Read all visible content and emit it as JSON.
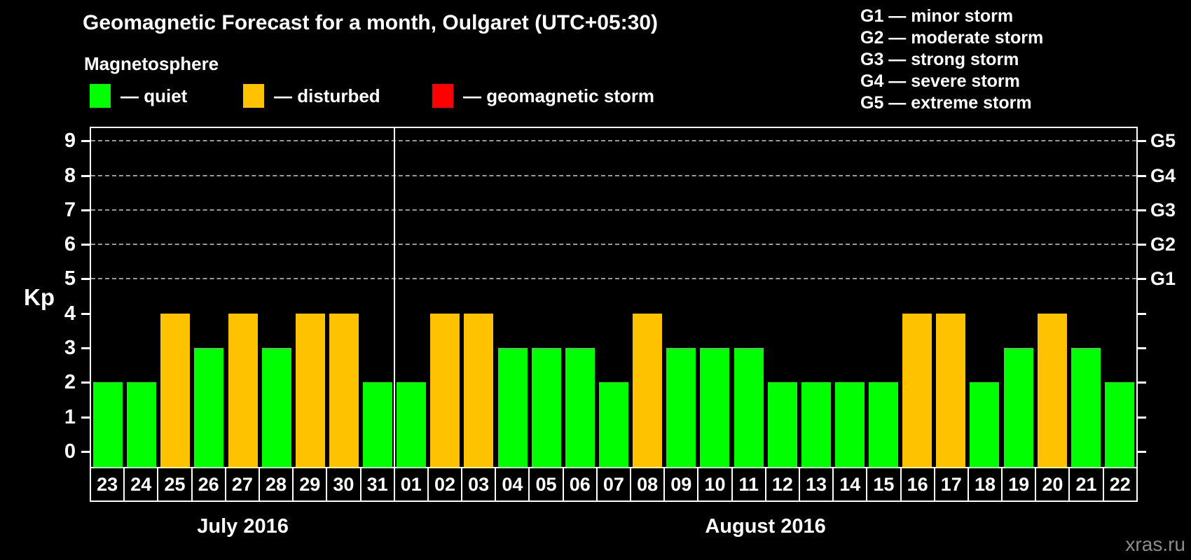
{
  "title": "Geomagnetic Forecast for a month, Oulgaret (UTC+05:30)",
  "subtitle": "Magnetosphere",
  "legend": {
    "items": [
      {
        "key": "quiet",
        "label": "— quiet",
        "color": "#00ff00"
      },
      {
        "key": "disturbed",
        "label": "— disturbed",
        "color": "#ffc200"
      },
      {
        "key": "storm",
        "label": "— geomagnetic storm",
        "color": "#ff0000"
      }
    ]
  },
  "g_scale_legend": [
    {
      "label": "G1 — minor storm"
    },
    {
      "label": "G2 — moderate storm"
    },
    {
      "label": "G3 — strong storm"
    },
    {
      "label": "G4 — severe storm"
    },
    {
      "label": "G5 — extreme storm"
    }
  ],
  "watermark": "xras.ru",
  "chart_data": {
    "type": "bar",
    "title": "Geomagnetic Forecast for a month, Oulgaret (UTC+05:30)",
    "ylabel": "Kp",
    "ylim": [
      -0.45,
      9.37
    ],
    "y_ticks": [
      0,
      1,
      2,
      3,
      4,
      5,
      6,
      7,
      8,
      9
    ],
    "gridlines_at_kp": [
      5,
      6,
      7,
      8,
      9
    ],
    "grid": "dashed horizontal lines at Kp 5-9 only",
    "legend_position": "top",
    "right_axis": [
      {
        "kp": 5,
        "label": "G1"
      },
      {
        "kp": 6,
        "label": "G2"
      },
      {
        "kp": 7,
        "label": "G3"
      },
      {
        "kp": 8,
        "label": "G4"
      },
      {
        "kp": 9,
        "label": "G5"
      }
    ],
    "status_colors": {
      "quiet": "#00ff00",
      "disturbed": "#ffc200",
      "storm": "#ff0000"
    },
    "months": [
      {
        "label": "July 2016",
        "days": [
          "23",
          "24",
          "25",
          "26",
          "27",
          "28",
          "29",
          "30",
          "31"
        ],
        "values": [
          2,
          2,
          4,
          3,
          4,
          3,
          4,
          4,
          2
        ],
        "statuses": [
          "quiet",
          "quiet",
          "disturbed",
          "quiet",
          "disturbed",
          "quiet",
          "disturbed",
          "disturbed",
          "quiet"
        ]
      },
      {
        "label": "August 2016",
        "days": [
          "01",
          "02",
          "03",
          "04",
          "05",
          "06",
          "07",
          "08",
          "09",
          "10",
          "11",
          "12",
          "13",
          "14",
          "15",
          "16",
          "17",
          "18",
          "19",
          "20",
          "21",
          "22"
        ],
        "values": [
          2,
          4,
          4,
          3,
          3,
          3,
          2,
          4,
          3,
          3,
          3,
          2,
          2,
          2,
          2,
          4,
          4,
          2,
          3,
          4,
          3,
          2
        ],
        "statuses": [
          "quiet",
          "disturbed",
          "disturbed",
          "quiet",
          "quiet",
          "quiet",
          "quiet",
          "disturbed",
          "quiet",
          "quiet",
          "quiet",
          "quiet",
          "quiet",
          "quiet",
          "quiet",
          "disturbed",
          "disturbed",
          "quiet",
          "quiet",
          "disturbed",
          "quiet",
          "quiet"
        ]
      }
    ]
  }
}
